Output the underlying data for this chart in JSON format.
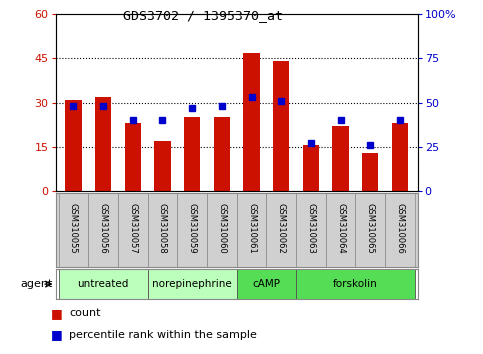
{
  "title": "GDS3702 / 1395370_at",
  "samples": [
    "GSM310055",
    "GSM310056",
    "GSM310057",
    "GSM310058",
    "GSM310059",
    "GSM310060",
    "GSM310061",
    "GSM310062",
    "GSM310063",
    "GSM310064",
    "GSM310065",
    "GSM310066"
  ],
  "counts": [
    31,
    32,
    23,
    17,
    25,
    25,
    47,
    44,
    15.5,
    22,
    13,
    23
  ],
  "percentile_ranks": [
    48,
    48,
    40,
    40,
    47,
    48,
    53,
    51,
    27,
    40,
    26,
    40
  ],
  "agents": [
    {
      "label": "untreated",
      "start": 0,
      "end": 3,
      "color": "#bbffbb"
    },
    {
      "label": "norepinephrine",
      "start": 3,
      "end": 6,
      "color": "#bbffbb"
    },
    {
      "label": "cAMP",
      "start": 6,
      "end": 8,
      "color": "#55dd55"
    },
    {
      "label": "forskolin",
      "start": 8,
      "end": 12,
      "color": "#55dd55"
    }
  ],
  "left_ylim": [
    0,
    60
  ],
  "left_yticks": [
    0,
    15,
    30,
    45,
    60
  ],
  "right_ylim": [
    0,
    100
  ],
  "right_yticks": [
    0,
    25,
    50,
    75,
    100
  ],
  "bar_color": "#cc1100",
  "marker_color": "#0000cc",
  "left_tick_color": "#cc1100",
  "right_tick_color": "#0000cc",
  "sample_box_color": "#d0d0d0",
  "spine_color": "#888888"
}
